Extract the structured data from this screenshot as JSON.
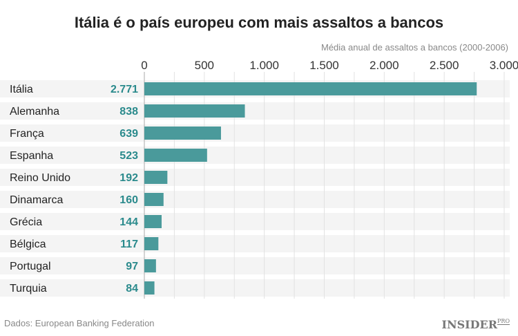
{
  "chart_data": {
    "type": "bar",
    "orientation": "horizontal",
    "title": "Itália é o país europeu com mais assaltos a bancos",
    "xlabel": "Média anual de assaltos a bancos (2000-2006)",
    "categories": [
      "Itália",
      "Alemanha",
      "França",
      "Espanha",
      "Reino Unido",
      "Dinamarca",
      "Grécia",
      "Bélgica",
      "Portugal",
      "Turquia"
    ],
    "values": [
      2771,
      838,
      639,
      523,
      192,
      160,
      144,
      117,
      97,
      84
    ],
    "value_labels": [
      "2.771",
      "838",
      "639",
      "523",
      "192",
      "160",
      "144",
      "117",
      "97",
      "84"
    ],
    "xlim": [
      0,
      3000
    ],
    "ticks": [
      0,
      500,
      1000,
      1500,
      2000,
      2500,
      3000
    ],
    "tick_labels": [
      "0",
      "500",
      "1.000",
      "1.500",
      "2.000",
      "2.500",
      "3.000"
    ],
    "grid": true,
    "bar_color": "#4a9a9b",
    "label_color": "#2a8a8c"
  },
  "source": "Dados: European Banking Federation",
  "logo": {
    "main": "INSIDER",
    "sup": "PRO"
  }
}
